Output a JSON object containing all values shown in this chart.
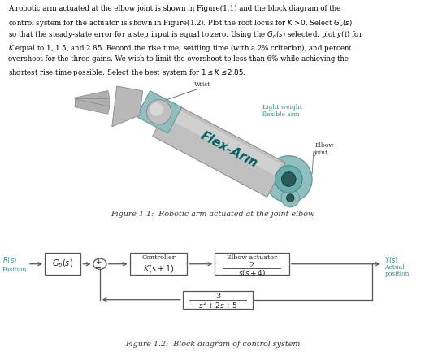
{
  "fig1_caption": "Figure 1.1:  Robotic arm actuated at the joint elbow",
  "fig2_caption": "Figure 1.2:  Block diagram of control system",
  "wrist_label": "Wrist",
  "lightweight_label": "Light weight\nflexible arm",
  "elbow_label": "Elbow\njoint",
  "flexarm_text": "Flex-Arm",
  "bg_color": "#ffffff",
  "text_color": "#000000",
  "teal_color": "#2e8b8b",
  "arm_gray": "#c0c0c0",
  "arm_light": "#d8d8d8",
  "arm_dark": "#909090",
  "arm_teal": "#7ab8b8",
  "lc": "#555555",
  "teal_label": "#2e8b8b",
  "lines": [
    "A robotic arm actuated at the elbow joint is shown in Figure(1.1) and the block diagram of the",
    "control system for the actuator is shown in Figure(1.2). Plot the root locus for $K > 0$. Select $G_p(s)$",
    "so that the steady-state error for a step input is equal to zero. Using the $G_p(s)$ selected, plot $y(t)$ for",
    "$K$ equal to 1, 1.5, and 2.85. Record the rise time, settling time (with a 2% criterion), and percent",
    "overshoot for the three gains. We wish to limit the overshoot to less than 6% while achieving the",
    "shortest rise time possible. Select the best system for $1 \\leq K \\leq 2.85$."
  ]
}
